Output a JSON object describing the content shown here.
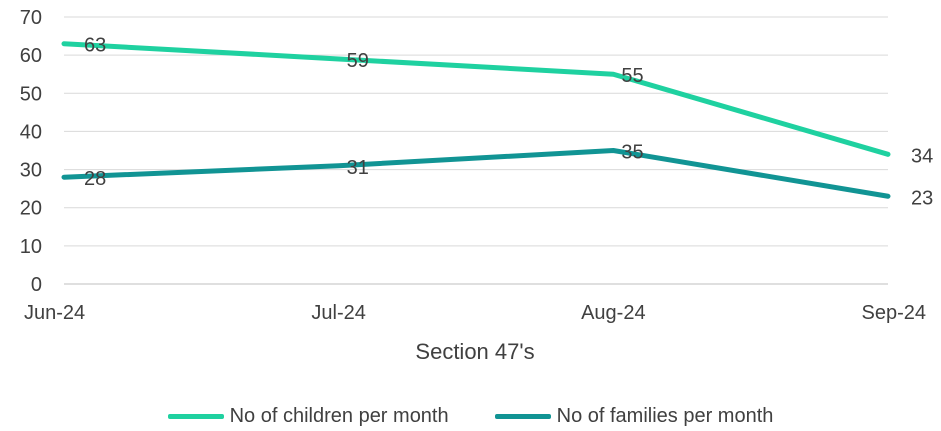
{
  "chart_data": {
    "type": "line",
    "categories": [
      "Jun-24",
      "Jul-24",
      "Aug-24",
      "Sep-24"
    ],
    "series": [
      {
        "name": "No of children per month",
        "values": [
          63,
          59,
          55,
          34
        ],
        "color": "#1fd1a0"
      },
      {
        "name": "No of families per month",
        "values": [
          28,
          31,
          35,
          23
        ],
        "color": "#119494"
      }
    ],
    "xlabel": "Section 47's",
    "ylabel": "",
    "ylim": [
      0,
      70
    ],
    "yticks": [
      0,
      10,
      20,
      30,
      40,
      50,
      60,
      70
    ],
    "grid": true,
    "legend": "bottom"
  }
}
